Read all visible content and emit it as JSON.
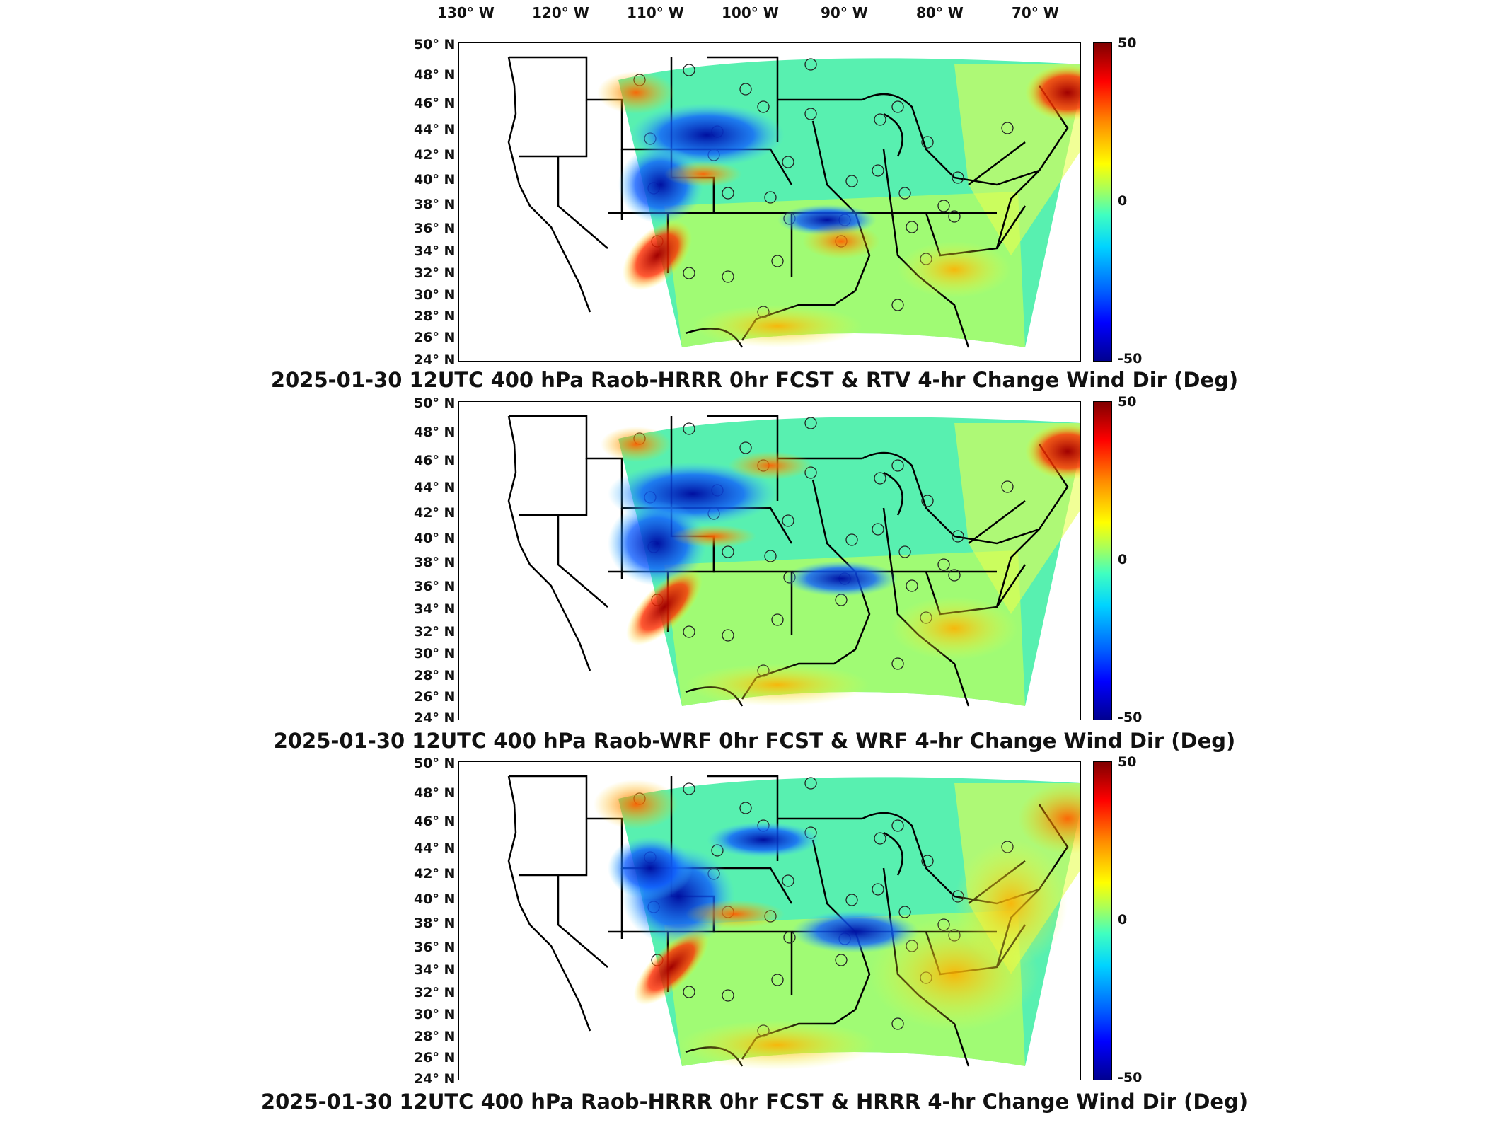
{
  "longitude_labels": [
    "130° W",
    "120° W",
    "110° W",
    "100° W",
    "90° W",
    "80° W",
    "70° W"
  ],
  "latitude_labels": [
    "50° N",
    "48° N",
    "46° N",
    "44° N",
    "42° N",
    "40° N",
    "38° N",
    "36° N",
    "34° N",
    "32° N",
    "30° N",
    "28° N",
    "26° N",
    "24° N"
  ],
  "colorbar": {
    "max_label": "50",
    "mid_label": "0",
    "min_label": "-50"
  },
  "panels": [
    {
      "title": "2025-01-30 12UTC 400 hPa Raob-HRRR 0hr FCST & RTV 4-hr Change Wind Dir (Deg)"
    },
    {
      "title": "2025-01-30 12UTC 400 hPa Raob-WRF 0hr FCST & WRF 4-hr Change Wind Dir (Deg)"
    },
    {
      "title": "2025-01-30 12UTC 400 hPa Raob-HRRR 0hr FCST & HRRR 4-hr Change Wind Dir (Deg)"
    }
  ],
  "colors": {
    "field_base": "#40f0b8",
    "positive_strong": "#b00000",
    "negative_strong": "#0018c8",
    "coast": "#000000"
  }
}
